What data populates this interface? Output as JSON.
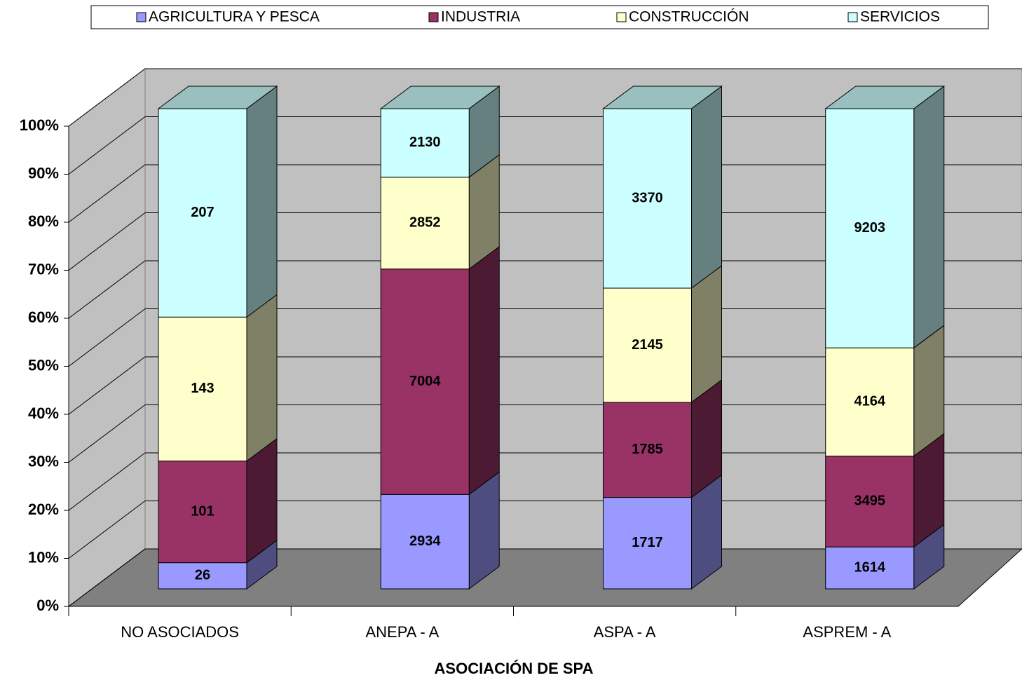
{
  "chart_data": {
    "type": "bar",
    "stacking": "percent",
    "three_d": true,
    "x_label": "ASOCIACIÓN DE SPA",
    "categories": [
      "NO ASOCIADOS",
      "ANEPA - A",
      "ASPA - A",
      "ASPREM - A"
    ],
    "series": [
      {
        "name": "AGRICULTURA Y PESCA",
        "color": "#9999ff",
        "values": [
          26,
          2934,
          1717,
          1614
        ]
      },
      {
        "name": "INDUSTRIA",
        "color": "#993366",
        "values": [
          101,
          7004,
          1785,
          3495
        ]
      },
      {
        "name": "CONSTRUCCIÓN",
        "color": "#ffffcc",
        "values": [
          143,
          2852,
          2145,
          4164
        ]
      },
      {
        "name": "SERVICIOS",
        "color": "#ccffff",
        "values": [
          207,
          2130,
          3370,
          9203
        ]
      }
    ],
    "ylim": [
      0,
      100
    ],
    "yticks": [
      {
        "value": 0,
        "label": "0%"
      },
      {
        "value": 10,
        "label": "10%"
      },
      {
        "value": 20,
        "label": "20%"
      },
      {
        "value": 30,
        "label": "30%"
      },
      {
        "value": 40,
        "label": "40%"
      },
      {
        "value": 50,
        "label": "50%"
      },
      {
        "value": 60,
        "label": "60%"
      },
      {
        "value": 70,
        "label": "70%"
      },
      {
        "value": 80,
        "label": "80%"
      },
      {
        "value": 90,
        "label": "90%"
      },
      {
        "value": 100,
        "label": "100%"
      }
    ],
    "grid": true,
    "legend": "top"
  }
}
